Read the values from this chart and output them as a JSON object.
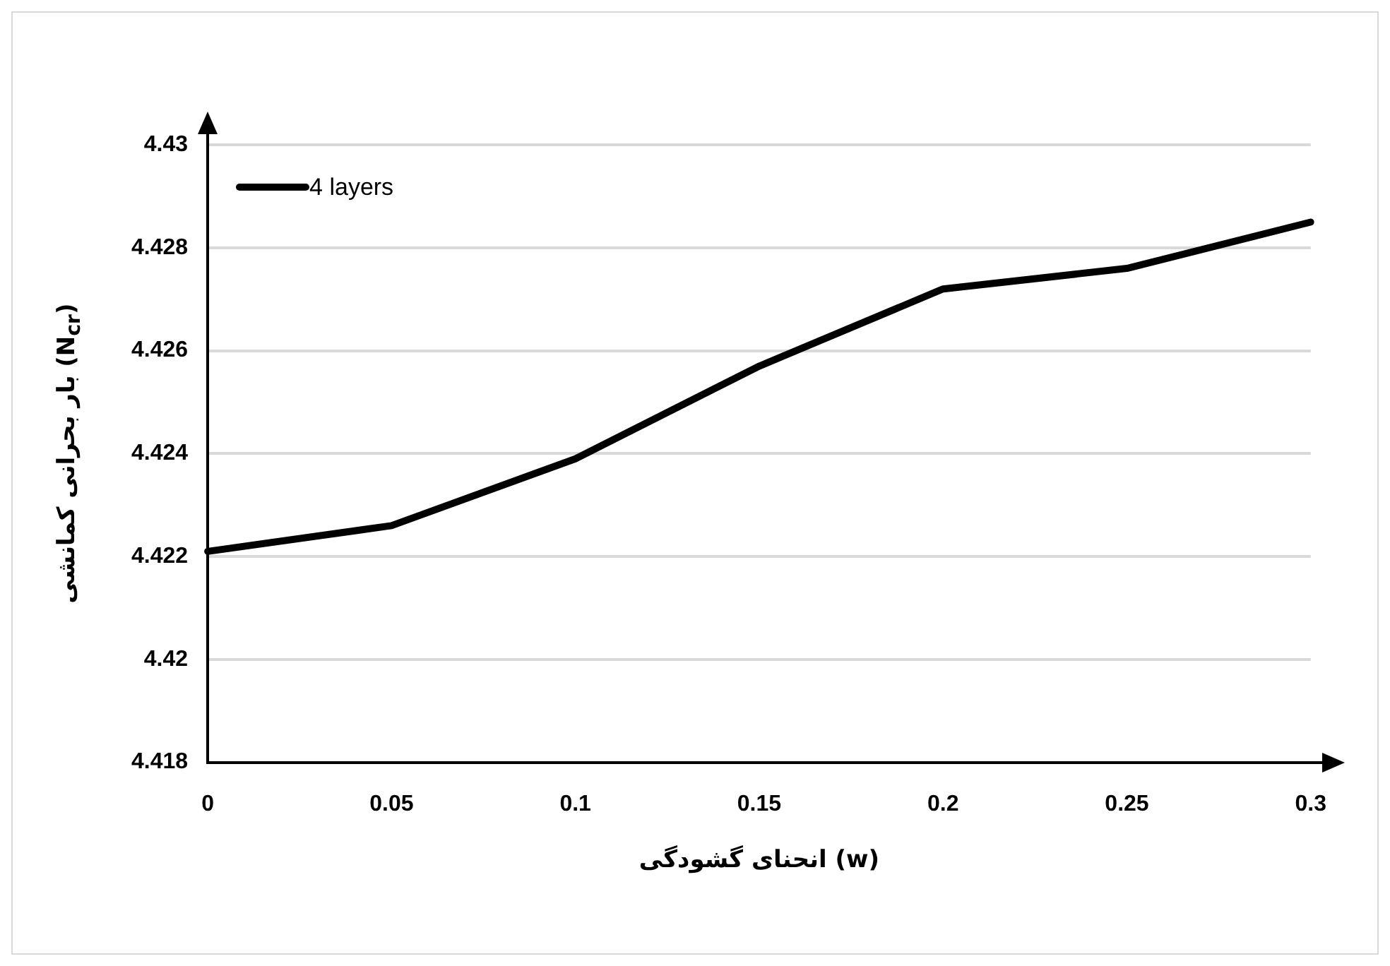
{
  "chart_data": {
    "type": "line",
    "xlabel": "انحنای گشودگی (w)",
    "ylabel": "بار بحرانی کمانشی (N$_{cr}$)",
    "categories": [
      "0",
      "0.05",
      "0.1",
      "0.15",
      "0.2",
      "0.25",
      "0.3"
    ],
    "series": [
      {
        "name": "4 layers",
        "color": "#000000",
        "values": [
          4.4221,
          4.4226,
          4.4239,
          4.4257,
          4.4272,
          4.4276,
          4.4285
        ]
      }
    ],
    "ylim": [
      4.418,
      4.43
    ],
    "yticks": [
      4.418,
      4.42,
      4.422,
      4.424,
      4.426,
      4.428,
      4.43
    ],
    "grid": "y",
    "legend": "top left",
    "marker": "none",
    "line_style": "solid"
  }
}
